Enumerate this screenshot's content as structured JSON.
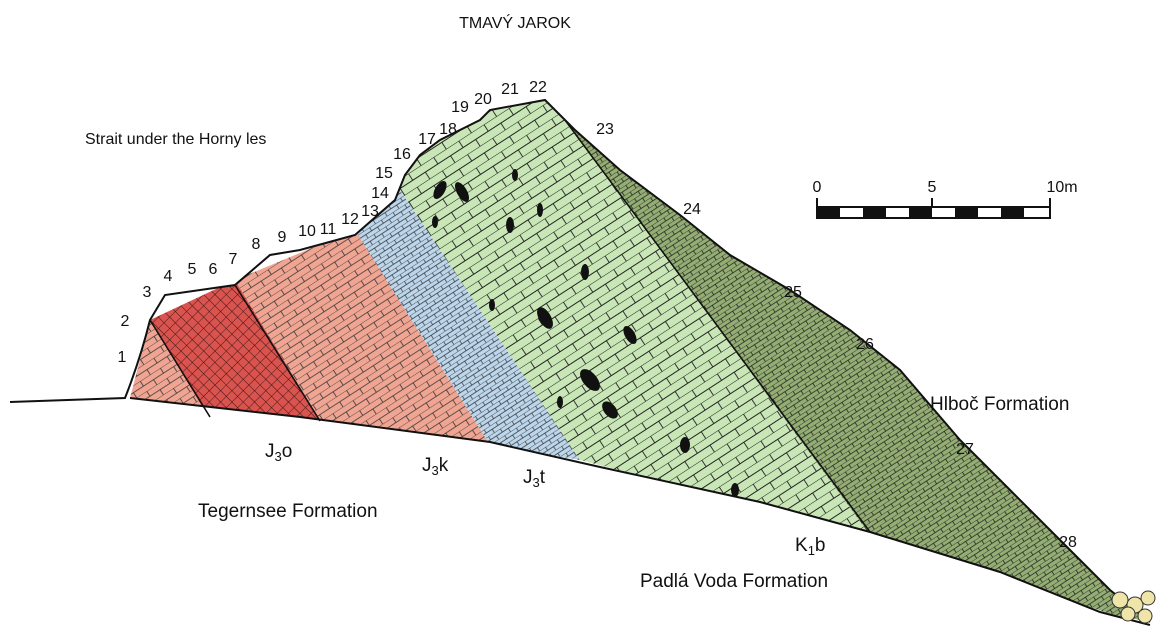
{
  "title": "TMAVÝ JAROK",
  "locality": "Strait under the Horny les",
  "beds": [
    "1",
    "2",
    "3",
    "4",
    "5",
    "6",
    "7",
    "8",
    "9",
    "10",
    "11",
    "12",
    "13",
    "14",
    "15",
    "16",
    "17",
    "18",
    "19",
    "20",
    "21",
    "22",
    "23",
    "24",
    "25",
    "26",
    "27",
    "28"
  ],
  "scale_bar": {
    "labels": [
      "0",
      "5",
      "10m"
    ]
  },
  "formations": [
    "Tegernsee Formation",
    "Padlá Voda Formation",
    "Hlboč Formation"
  ],
  "units": [
    {
      "symbol": "J",
      "index": "3",
      "suffix": "o"
    },
    {
      "symbol": "J",
      "index": "3",
      "suffix": "k"
    },
    {
      "symbol": "J",
      "index": "3",
      "suffix": "t"
    },
    {
      "symbol": "K",
      "index": "1",
      "suffix": "b"
    }
  ]
}
